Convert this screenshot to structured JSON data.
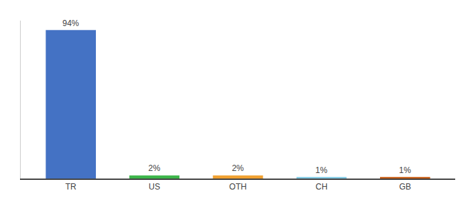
{
  "chart_data": {
    "type": "bar",
    "categories": [
      "TR",
      "US",
      "OTH",
      "CH",
      "GB"
    ],
    "values": [
      94,
      2,
      2,
      1,
      1
    ],
    "value_labels": [
      "94%",
      "2%",
      "2%",
      "1%",
      "1%"
    ],
    "colors": [
      "#4472C4",
      "#3CB54A",
      "#F0A030",
      "#7EC8E3",
      "#C55A11"
    ],
    "ylim": [
      0,
      100
    ],
    "data_labels": true,
    "tick_labels": "x",
    "grid": false
  }
}
